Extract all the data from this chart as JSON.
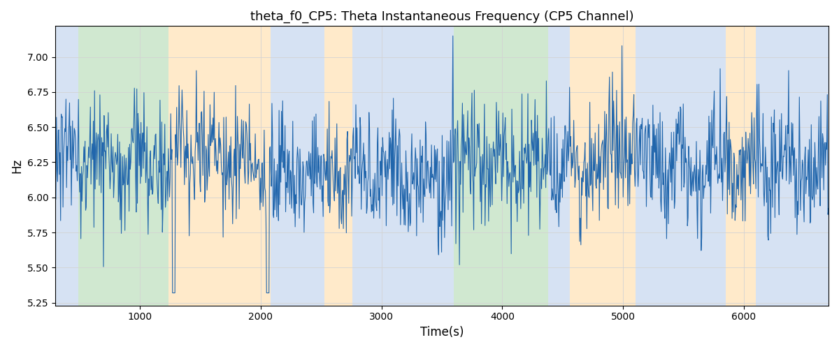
{
  "title": "theta_f0_CP5: Theta Instantaneous Frequency (CP5 Channel)",
  "xlabel": "Time(s)",
  "ylabel": "Hz",
  "xlim": [
    300,
    6700
  ],
  "ylim": [
    5.23,
    7.22
  ],
  "yticks": [
    5.25,
    5.5,
    5.75,
    6.0,
    6.25,
    6.5,
    6.75,
    7.0
  ],
  "line_color": "#2166ac",
  "line_width": 0.8,
  "colored_bands": [
    {
      "xmin": 300,
      "xmax": 490,
      "color": "#aec6e8",
      "alpha": 0.5
    },
    {
      "xmin": 490,
      "xmax": 1240,
      "color": "#98cc98",
      "alpha": 0.45
    },
    {
      "xmin": 1240,
      "xmax": 2080,
      "color": "#ffd9a0",
      "alpha": 0.55
    },
    {
      "xmin": 2080,
      "xmax": 2530,
      "color": "#aec6e8",
      "alpha": 0.5
    },
    {
      "xmin": 2530,
      "xmax": 2760,
      "color": "#ffd9a0",
      "alpha": 0.55
    },
    {
      "xmin": 2760,
      "xmax": 3600,
      "color": "#aec6e8",
      "alpha": 0.5
    },
    {
      "xmin": 3600,
      "xmax": 4380,
      "color": "#98cc98",
      "alpha": 0.45
    },
    {
      "xmin": 4380,
      "xmax": 4560,
      "color": "#aec6e8",
      "alpha": 0.5
    },
    {
      "xmin": 4560,
      "xmax": 5100,
      "color": "#ffd9a0",
      "alpha": 0.55
    },
    {
      "xmin": 5100,
      "xmax": 5850,
      "color": "#aec6e8",
      "alpha": 0.5
    },
    {
      "xmin": 5850,
      "xmax": 6100,
      "color": "#ffd9a0",
      "alpha": 0.55
    },
    {
      "xmin": 6100,
      "xmax": 6700,
      "color": "#aec6e8",
      "alpha": 0.5
    }
  ],
  "seed": 1234,
  "n_points": 1300,
  "t_start": 300,
  "t_end": 6700,
  "mean_freq": 6.22,
  "std_noise": 0.22,
  "slow_amp1": 0.06,
  "slow_period1": 4000,
  "slow_amp2": 0.04,
  "slow_period2": 1200
}
